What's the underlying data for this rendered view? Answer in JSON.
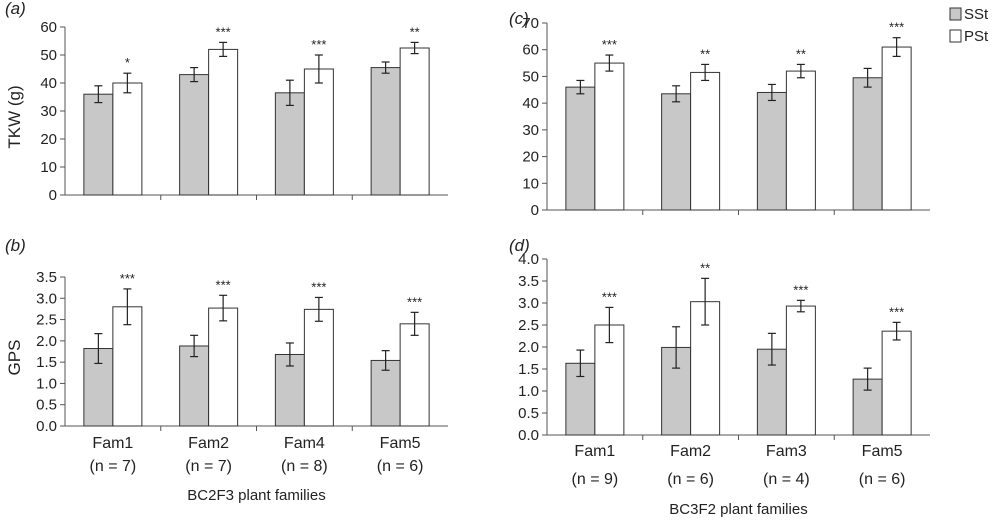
{
  "colors": {
    "sst_fill": "#c8c8c8",
    "pst_fill": "#ffffff",
    "stroke": "#333333"
  },
  "legend": {
    "position": "top-right",
    "items": [
      "SSt",
      "PSt"
    ]
  },
  "chart_data": [
    {
      "panel": "(a)",
      "type": "bar",
      "ylabel": "TKW (g)",
      "ylim": [
        0,
        60
      ],
      "yticks": [
        "0",
        "10",
        "20",
        "30",
        "40",
        "50",
        "60"
      ],
      "categories": [
        "Fam1",
        "Fam2",
        "Fam4",
        "Fam5"
      ],
      "category_n": [
        "(n = 7)",
        "(n = 7)",
        "(n = 8)",
        "(n = 6)"
      ],
      "series": [
        {
          "name": "SSt",
          "values": [
            36,
            43,
            36.5,
            45.5
          ],
          "errors": [
            3,
            2.5,
            4.5,
            2
          ]
        },
        {
          "name": "PSt",
          "values": [
            40,
            52,
            45,
            52.5
          ],
          "errors": [
            3.5,
            2.5,
            5,
            2
          ]
        }
      ],
      "significance": [
        "*",
        "***",
        "***",
        "**"
      ],
      "xlabel": ""
    },
    {
      "panel": "(b)",
      "type": "bar",
      "ylabel": "GPS",
      "ylim": [
        0,
        3.5
      ],
      "yticks": [
        "0.0",
        "0.5",
        "1.0",
        "1.5",
        "2.0",
        "2.5",
        "3.0",
        "3.5"
      ],
      "categories": [
        "Fam1",
        "Fam2",
        "Fam4",
        "Fam5"
      ],
      "category_n": [
        "(n = 7)",
        "(n = 7)",
        "(n = 8)",
        "(n = 6)"
      ],
      "series": [
        {
          "name": "SSt",
          "values": [
            1.82,
            1.88,
            1.68,
            1.54
          ],
          "errors": [
            0.35,
            0.25,
            0.27,
            0.23
          ]
        },
        {
          "name": "PSt",
          "values": [
            2.8,
            2.77,
            2.74,
            2.4
          ],
          "errors": [
            0.42,
            0.3,
            0.28,
            0.27
          ]
        }
      ],
      "significance": [
        "***",
        "***",
        "***",
        "***"
      ],
      "xlabel": "BC2F3 plant families"
    },
    {
      "panel": "(c)",
      "type": "bar",
      "ylabel": "",
      "ylim": [
        0,
        70
      ],
      "yticks": [
        "0",
        "10",
        "20",
        "30",
        "40",
        "50",
        "60",
        "70"
      ],
      "categories": [
        "Fam1",
        "Fam2",
        "Fam3",
        "Fam5"
      ],
      "category_n": [
        "(n = 9)",
        "(n = 6)",
        "(n = 4)",
        "(n = 6)"
      ],
      "series": [
        {
          "name": "SSt",
          "values": [
            46,
            43.5,
            44,
            49.5
          ],
          "errors": [
            2.5,
            3,
            3,
            3.5
          ]
        },
        {
          "name": "PSt",
          "values": [
            55,
            51.5,
            52,
            61
          ],
          "errors": [
            3,
            3,
            2.5,
            3.5
          ]
        }
      ],
      "significance": [
        "***",
        "**",
        "**",
        "***"
      ],
      "xlabel": ""
    },
    {
      "panel": "(d)",
      "type": "bar",
      "ylabel": "",
      "ylim": [
        0,
        4.0
      ],
      "yticks": [
        "0.0",
        "0.5",
        "1.0",
        "1.5",
        "2.0",
        "2.5",
        "3.0",
        "3.5",
        "4.0"
      ],
      "categories": [
        "Fam1",
        "Fam2",
        "Fam3",
        "Fam5"
      ],
      "category_n": [
        "(n = 9)",
        "(n = 6)",
        "(n = 4)",
        "(n = 6)"
      ],
      "series": [
        {
          "name": "SSt",
          "values": [
            1.63,
            1.99,
            1.95,
            1.27
          ],
          "errors": [
            0.3,
            0.47,
            0.36,
            0.25
          ]
        },
        {
          "name": "PSt",
          "values": [
            2.5,
            3.03,
            2.93,
            2.36
          ],
          "errors": [
            0.4,
            0.53,
            0.13,
            0.2
          ]
        }
      ],
      "significance": [
        "***",
        "**",
        "***",
        "***"
      ],
      "xlabel": "BC3F2 plant families"
    }
  ]
}
